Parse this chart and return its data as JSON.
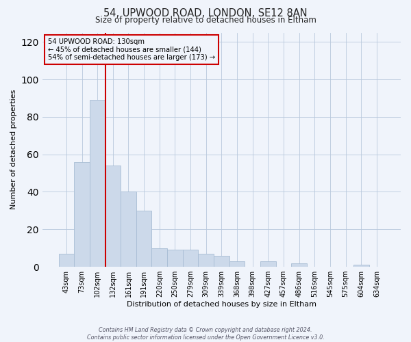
{
  "title": "54, UPWOOD ROAD, LONDON, SE12 8AN",
  "subtitle": "Size of property relative to detached houses in Eltham",
  "xlabel": "Distribution of detached houses by size in Eltham",
  "ylabel": "Number of detached properties",
  "bar_color": "#ccd9ea",
  "bar_edge_color": "#a8bdd4",
  "categories": [
    "43sqm",
    "73sqm",
    "102sqm",
    "132sqm",
    "161sqm",
    "191sqm",
    "220sqm",
    "250sqm",
    "279sqm",
    "309sqm",
    "339sqm",
    "368sqm",
    "398sqm",
    "427sqm",
    "457sqm",
    "486sqm",
    "516sqm",
    "545sqm",
    "575sqm",
    "604sqm",
    "634sqm"
  ],
  "values": [
    7,
    56,
    89,
    54,
    40,
    30,
    10,
    9,
    9,
    7,
    6,
    3,
    0,
    3,
    0,
    2,
    0,
    0,
    0,
    1,
    0
  ],
  "ylim": [
    0,
    125
  ],
  "yticks": [
    0,
    20,
    40,
    60,
    80,
    100,
    120
  ],
  "annotation_line1": "54 UPWOOD ROAD: 130sqm",
  "annotation_line2": "← 45% of detached houses are smaller (144)",
  "annotation_line3": "54% of semi-detached houses are larger (173) →",
  "vline_color": "#cc0000",
  "vline_x_idx": 2,
  "footnote1": "Contains HM Land Registry data © Crown copyright and database right 2024.",
  "footnote2": "Contains public sector information licensed under the Open Government Licence v3.0.",
  "bg_color": "#f0f4fb",
  "grid_color": "#b8c8dc"
}
